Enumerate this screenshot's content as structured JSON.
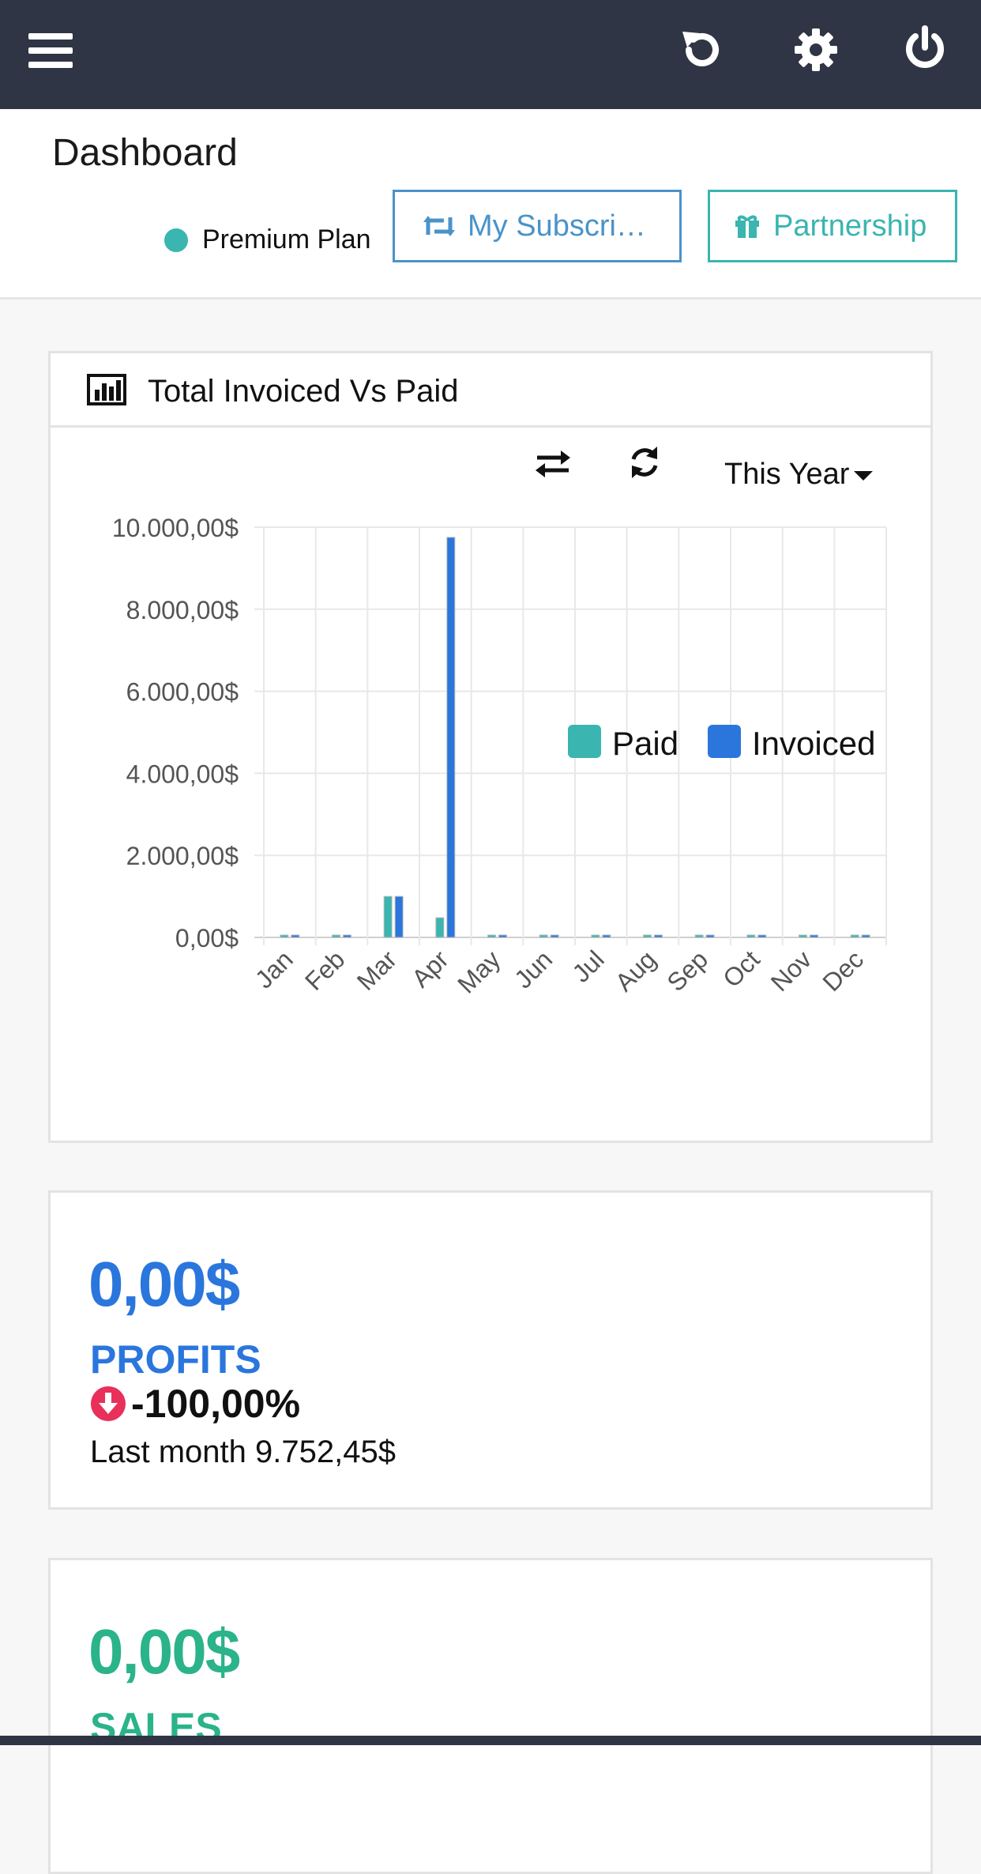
{
  "header": {
    "title": "Dashboard",
    "plan_label": "Premium Plan",
    "subscription_button": "My Subscri…",
    "partnership_button": "Partnership"
  },
  "colors": {
    "topbar": "#303545",
    "paid": "#3ab5b0",
    "invoiced": "#2a76dd",
    "profits": "#2a76dd",
    "sales": "#2bb38a",
    "down": "#e8305a"
  },
  "chart_card": {
    "title": "Total Invoiced Vs Paid",
    "range_label": "This Year"
  },
  "chart_data": {
    "type": "bar",
    "categories": [
      "Jan",
      "Feb",
      "Mar",
      "Apr",
      "May",
      "Jun",
      "Jul",
      "Aug",
      "Sep",
      "Oct",
      "Nov",
      "Dec"
    ],
    "series": [
      {
        "name": "Paid",
        "values": [
          0,
          0,
          1000,
          480,
          0,
          0,
          0,
          0,
          0,
          0,
          0,
          0
        ]
      },
      {
        "name": "Invoiced",
        "values": [
          0,
          0,
          1000,
          9752.45,
          0,
          0,
          0,
          0,
          0,
          0,
          0,
          0
        ]
      }
    ],
    "y_ticks": [
      0,
      2000,
      4000,
      6000,
      8000,
      10000
    ],
    "y_tick_labels": [
      "0,00$",
      "2.000,00$",
      "4.000,00$",
      "6.000,00$",
      "8.000,00$",
      "10.000,00$"
    ],
    "ylim": [
      0,
      10000
    ],
    "grid": true,
    "legend_position": "bottom-right"
  },
  "profits": {
    "value": "0,00$",
    "label": "PROFITS",
    "change": "-100,00%",
    "last_month": "Last month 9.752,45$"
  },
  "sales": {
    "value": "0,00$",
    "label": "SALES"
  }
}
